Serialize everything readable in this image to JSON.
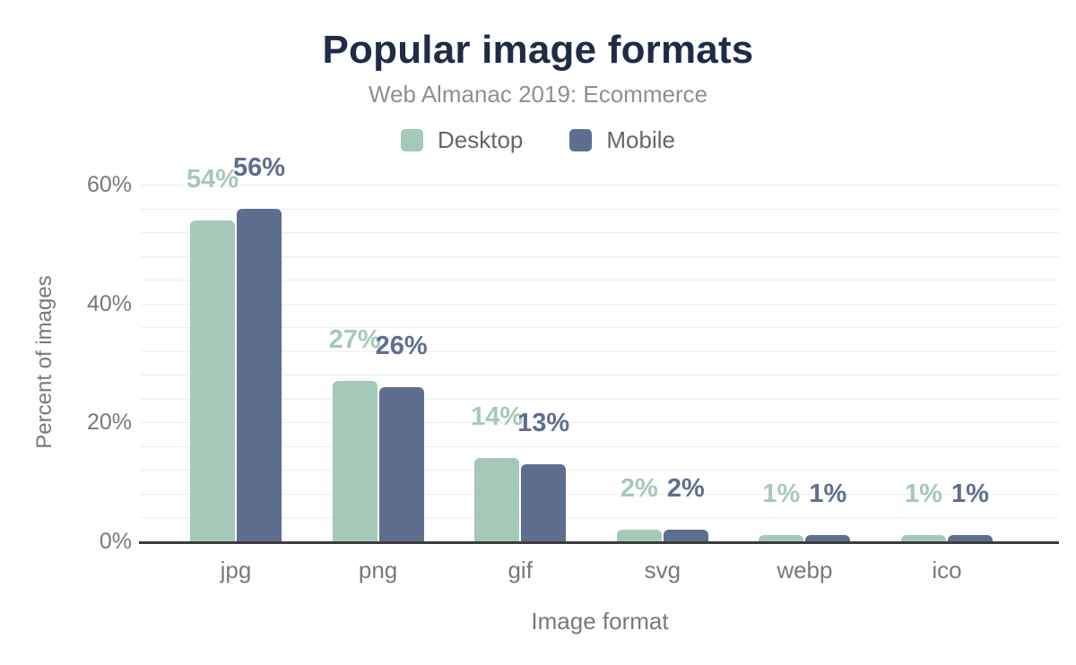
{
  "chart_data": {
    "type": "bar",
    "title": "Popular image formats",
    "subtitle": "Web Almanac 2019: Ecommerce",
    "xlabel": "Image format",
    "ylabel": "Percent of images",
    "categories": [
      "jpg",
      "png",
      "gif",
      "svg",
      "webp",
      "ico"
    ],
    "series": [
      {
        "name": "Desktop",
        "color": "#a5c9b8",
        "label_color": "#a5c9b8",
        "values": [
          54,
          27,
          14,
          2,
          1,
          1
        ]
      },
      {
        "name": "Mobile",
        "color": "#5e6e8e",
        "label_color": "#5e6e8e",
        "values": [
          56,
          26,
          13,
          2,
          1,
          1
        ]
      }
    ],
    "value_label_suffix": "%",
    "ytick_values": [
      0,
      20,
      40,
      60
    ],
    "ytick_labels": [
      "0%",
      "20%",
      "40%",
      "60%"
    ],
    "ylim": [
      0,
      62
    ],
    "minor_grid_step_percent": 4,
    "grid": true,
    "legend_position": "top-center"
  },
  "colors": {
    "background": "#ffffff",
    "title_text": "#1f2b47",
    "subtitle_text": "#8b9097",
    "legend_text": "#63676c",
    "axis_tick_text": "#77797c",
    "axis_line": "#3d3d3d",
    "gridline": "#ededed"
  }
}
